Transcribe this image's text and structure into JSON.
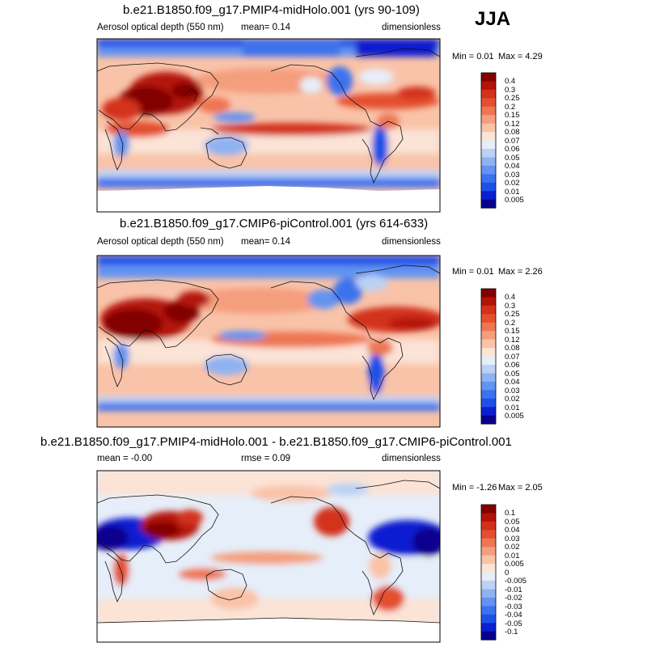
{
  "season_label": "JJA",
  "palette": [
    "#08008f",
    "#0b1fd0",
    "#1f4fe8",
    "#3c72ee",
    "#6493f0",
    "#8fb2f2",
    "#bcd2f4",
    "#e6eef9",
    "#fbe3d6",
    "#f9c3a9",
    "#f59e7d",
    "#ee7653",
    "#e4502f",
    "#d3311a",
    "#b41408",
    "#820000"
  ],
  "panels": [
    {
      "title": "b.e21.B1850.f09_g17.PMIP4-midHolo.001 (yrs 90-109)",
      "left_text": "Aerosol optical depth (550 nm)",
      "center_text": "mean=   0.14",
      "right_text": "dimensionless",
      "min_label": "Min =   0.01",
      "max_label": "Max =   4.29",
      "colorbar_levels": [
        "0.4",
        "0.3",
        "0.25",
        "0.2",
        "0.15",
        "0.12",
        "0.08",
        "0.07",
        "0.06",
        "0.05",
        "0.04",
        "0.03",
        "0.02",
        "0.01",
        "0.005"
      ]
    },
    {
      "title": "b.e21.B1850.f09_g17.CMIP6-piControl.001 (yrs 614-633)",
      "left_text": "Aerosol optical depth (550 nm)",
      "center_text": "mean=   0.14",
      "right_text": "dimensionless",
      "min_label": "Min =   0.01",
      "max_label": "Max =   2.26",
      "colorbar_levels": [
        "0.4",
        "0.3",
        "0.25",
        "0.2",
        "0.15",
        "0.12",
        "0.08",
        "0.07",
        "0.06",
        "0.05",
        "0.04",
        "0.03",
        "0.02",
        "0.01",
        "0.005"
      ]
    },
    {
      "title": "b.e21.B1850.f09_g17.PMIP4-midHolo.001 - b.e21.B1850.f09_g17.CMIP6-piControl.001",
      "left_text": "mean =  -0.00",
      "center_text": "rmse =   0.09",
      "right_text": "dimensionless",
      "min_label": "Min =  -1.26",
      "max_label": "Max =   2.05",
      "colorbar_levels": [
        "0.1",
        "0.05",
        "0.04",
        "0.03",
        "0.02",
        "0.01",
        "0.005",
        "0",
        "-0.005",
        "-0.01",
        "-0.02",
        "-0.03",
        "-0.04",
        "-0.05",
        "-0.1"
      ]
    }
  ],
  "chart_data": [
    {
      "type": "heatmap",
      "title": "b.e21.B1850.f09_g17.PMIP4-midHolo.001 (yrs 90-109)",
      "variable": "Aerosol optical depth (550 nm)",
      "units": "dimensionless",
      "season": "JJA",
      "mean": 0.14,
      "min": 0.01,
      "max": 4.29,
      "contour_levels": [
        0.005,
        0.01,
        0.02,
        0.03,
        0.04,
        0.05,
        0.06,
        0.07,
        0.08,
        0.12,
        0.15,
        0.2,
        0.25,
        0.3,
        0.4
      ]
    },
    {
      "type": "heatmap",
      "title": "b.e21.B1850.f09_g17.CMIP6-piControl.001 (yrs 614-633)",
      "variable": "Aerosol optical depth (550 nm)",
      "units": "dimensionless",
      "season": "JJA",
      "mean": 0.14,
      "min": 0.01,
      "max": 2.26,
      "contour_levels": [
        0.005,
        0.01,
        0.02,
        0.03,
        0.04,
        0.05,
        0.06,
        0.07,
        0.08,
        0.12,
        0.15,
        0.2,
        0.25,
        0.3,
        0.4
      ]
    },
    {
      "type": "heatmap",
      "title": "b.e21.B1850.f09_g17.PMIP4-midHolo.001 - b.e21.B1850.f09_g17.CMIP6-piControl.001",
      "units": "dimensionless",
      "season": "JJA",
      "mean": -0.0,
      "rmse": 0.09,
      "min": -1.26,
      "max": 2.05,
      "contour_levels": [
        -0.1,
        -0.05,
        -0.04,
        -0.03,
        -0.02,
        -0.01,
        -0.005,
        0,
        0.005,
        0.01,
        0.02,
        0.03,
        0.04,
        0.05,
        0.1
      ]
    }
  ]
}
